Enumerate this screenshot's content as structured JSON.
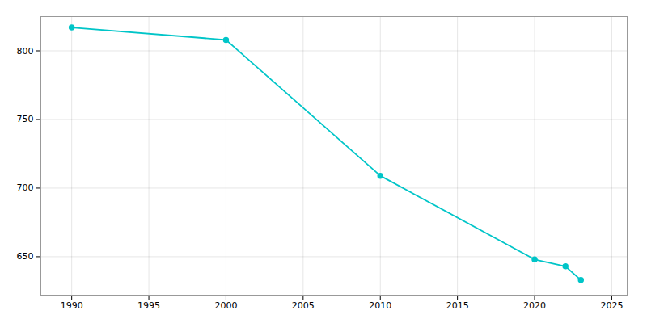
{
  "chart_data": {
    "type": "line",
    "x": [
      1990,
      2000,
      2010,
      2020,
      2022,
      2023
    ],
    "values": [
      817,
      808,
      709,
      648,
      643,
      633
    ],
    "color": "#00C5C8",
    "marker": "circle",
    "xlim": [
      1988,
      2026
    ],
    "ylim": [
      622,
      825
    ],
    "xticks": [
      1990,
      1995,
      2000,
      2005,
      2010,
      2015,
      2020,
      2025
    ],
    "yticks": [
      650,
      700,
      750,
      800
    ],
    "grid": true
  }
}
